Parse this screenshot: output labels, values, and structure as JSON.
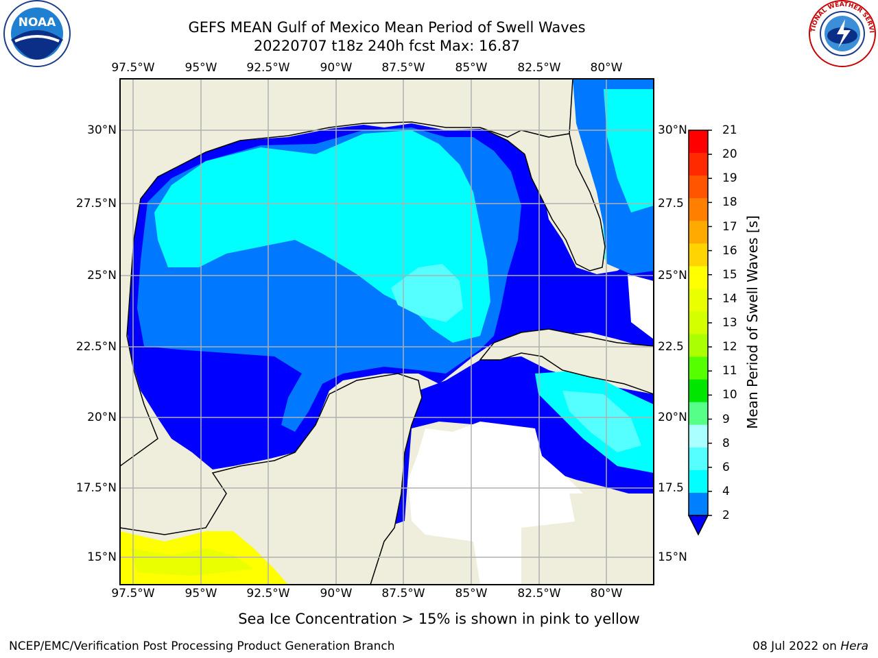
{
  "title": {
    "line1": "GEFS MEAN Gulf of Mexico Mean Period of Swell Waves",
    "line2": "20220707 t18z 240h fcst   Max: 16.87"
  },
  "lon_labels": [
    "97.5°W",
    "95°W",
    "92.5°W",
    "90°W",
    "87.5°W",
    "85°W",
    "82.5°W",
    "80°W"
  ],
  "lat_labels_left": [
    "30°N",
    "27.5°N",
    "25°N",
    "22.5°N",
    "20°N",
    "17.5°N",
    "15°N"
  ],
  "lat_labels_right": [
    "30°N",
    "27.5",
    "25°N",
    "22.5",
    "20°N",
    "17.5",
    "15°N"
  ],
  "colorbar": {
    "title": "Mean Period of Swell Waves [s]",
    "ticks": [
      "21",
      "20",
      "19",
      "18",
      "17",
      "16",
      "15",
      "14",
      "13",
      "12",
      "11",
      "10",
      "9",
      "8",
      "6",
      "4",
      "2"
    ],
    "colors": [
      "#ff0000",
      "#ff2a00",
      "#ff5500",
      "#ff8000",
      "#ffaa00",
      "#ffd400",
      "#ffff00",
      "#eaff00",
      "#d4ff00",
      "#aaff00",
      "#55ff00",
      "#00e600",
      "#55ff88",
      "#aaffff",
      "#55ffff",
      "#00ffff",
      "#0080ff"
    ]
  },
  "footer": {
    "note": "Sea Ice Concentration > 15% is shown in pink to yellow",
    "left": "NCEP/EMC/Verification Post Processing Product Generation Branch",
    "date": "08 Jul 2022 on ",
    "host": "Hera"
  },
  "logos": {
    "noaa": "NOAA",
    "nws": "NATIONAL WEATHER SERVICE"
  },
  "legend_colors": {
    "land": "#efeedc",
    "period_2_4": "#0000ff",
    "period_4_6": "#0078ff",
    "period_6_8": "#00ffff",
    "period_8_9": "#55ffff",
    "period_15": "#ffff00"
  }
}
